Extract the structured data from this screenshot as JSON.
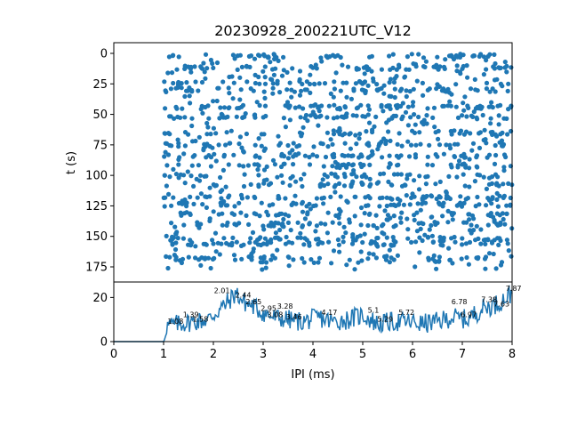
{
  "chart_data": [
    {
      "type": "scatter",
      "title": "20230928_200221UTC_V12",
      "ylabel": "t (s)",
      "xlabel": "",
      "xlim": [
        0,
        8
      ],
      "ylim": [
        0,
        180
      ],
      "y_inverted": true,
      "yticks": [
        "0",
        "25",
        "50",
        "75",
        "100",
        "125",
        "150",
        "175"
      ],
      "color": "#1f77b4",
      "x_range_of_points": [
        1.0,
        8.0
      ],
      "t_range_of_points": [
        0,
        178
      ],
      "point_count_estimate": 1500,
      "dense_rows_t": [
        2,
        12,
        24,
        30,
        44,
        52,
        65,
        75,
        84,
        92,
        100,
        108,
        118,
        124,
        132,
        140,
        152,
        156,
        168
      ]
    },
    {
      "type": "line",
      "title": "",
      "xlabel": "IPI (ms)",
      "ylabel": "",
      "xlim": [
        0,
        8
      ],
      "ylim": [
        0,
        27
      ],
      "xticks": [
        "0",
        "1",
        "2",
        "3",
        "4",
        "5",
        "6",
        "7",
        "8"
      ],
      "yticks": [
        "0",
        "20"
      ],
      "color": "#1f77b4",
      "peak_labels": [
        {
          "x": 1.08,
          "y": 8,
          "text": "1.08"
        },
        {
          "x": 1.39,
          "y": 11,
          "text": "1.39"
        },
        {
          "x": 1.58,
          "y": 9,
          "text": "1.58"
        },
        {
          "x": 2.01,
          "y": 22,
          "text": "2.01"
        },
        {
          "x": 2.44,
          "y": 20,
          "text": "2.44"
        },
        {
          "x": 2.65,
          "y": 17,
          "text": "2.65"
        },
        {
          "x": 2.95,
          "y": 14,
          "text": "2.95"
        },
        {
          "x": 3.08,
          "y": 11,
          "text": "3.08"
        },
        {
          "x": 3.28,
          "y": 15,
          "text": "3.28"
        },
        {
          "x": 3.46,
          "y": 10,
          "text": "3.46"
        },
        {
          "x": 4.17,
          "y": 12,
          "text": "4.17"
        },
        {
          "x": 5.1,
          "y": 13,
          "text": "5.1"
        },
        {
          "x": 5.29,
          "y": 9,
          "text": "5.29"
        },
        {
          "x": 5.72,
          "y": 12,
          "text": "5.72"
        },
        {
          "x": 6.78,
          "y": 17,
          "text": "6.78"
        },
        {
          "x": 6.97,
          "y": 11,
          "text": "6.97"
        },
        {
          "x": 7.38,
          "y": 18,
          "text": "7.38"
        },
        {
          "x": 7.63,
          "y": 16,
          "text": "7.63"
        },
        {
          "x": 7.87,
          "y": 23,
          "text": "7.87"
        }
      ],
      "curve_anchors_x": [
        0,
        1.0,
        1.05,
        1.3,
        1.6,
        1.9,
        2.1,
        2.3,
        2.45,
        2.6,
        2.8,
        3.0,
        3.2,
        3.5,
        3.8,
        4.1,
        4.4,
        4.7,
        5.0,
        5.3,
        5.6,
        5.9,
        6.2,
        6.5,
        6.8,
        7.1,
        7.4,
        7.7,
        8.0
      ],
      "curve_anchors_y": [
        0,
        0,
        7,
        8,
        9,
        10,
        14,
        18,
        22,
        18,
        16,
        13,
        11,
        10,
        9,
        11,
        9,
        10,
        12,
        8,
        9,
        9,
        8,
        9,
        11,
        10,
        15,
        17,
        22
      ]
    }
  ]
}
